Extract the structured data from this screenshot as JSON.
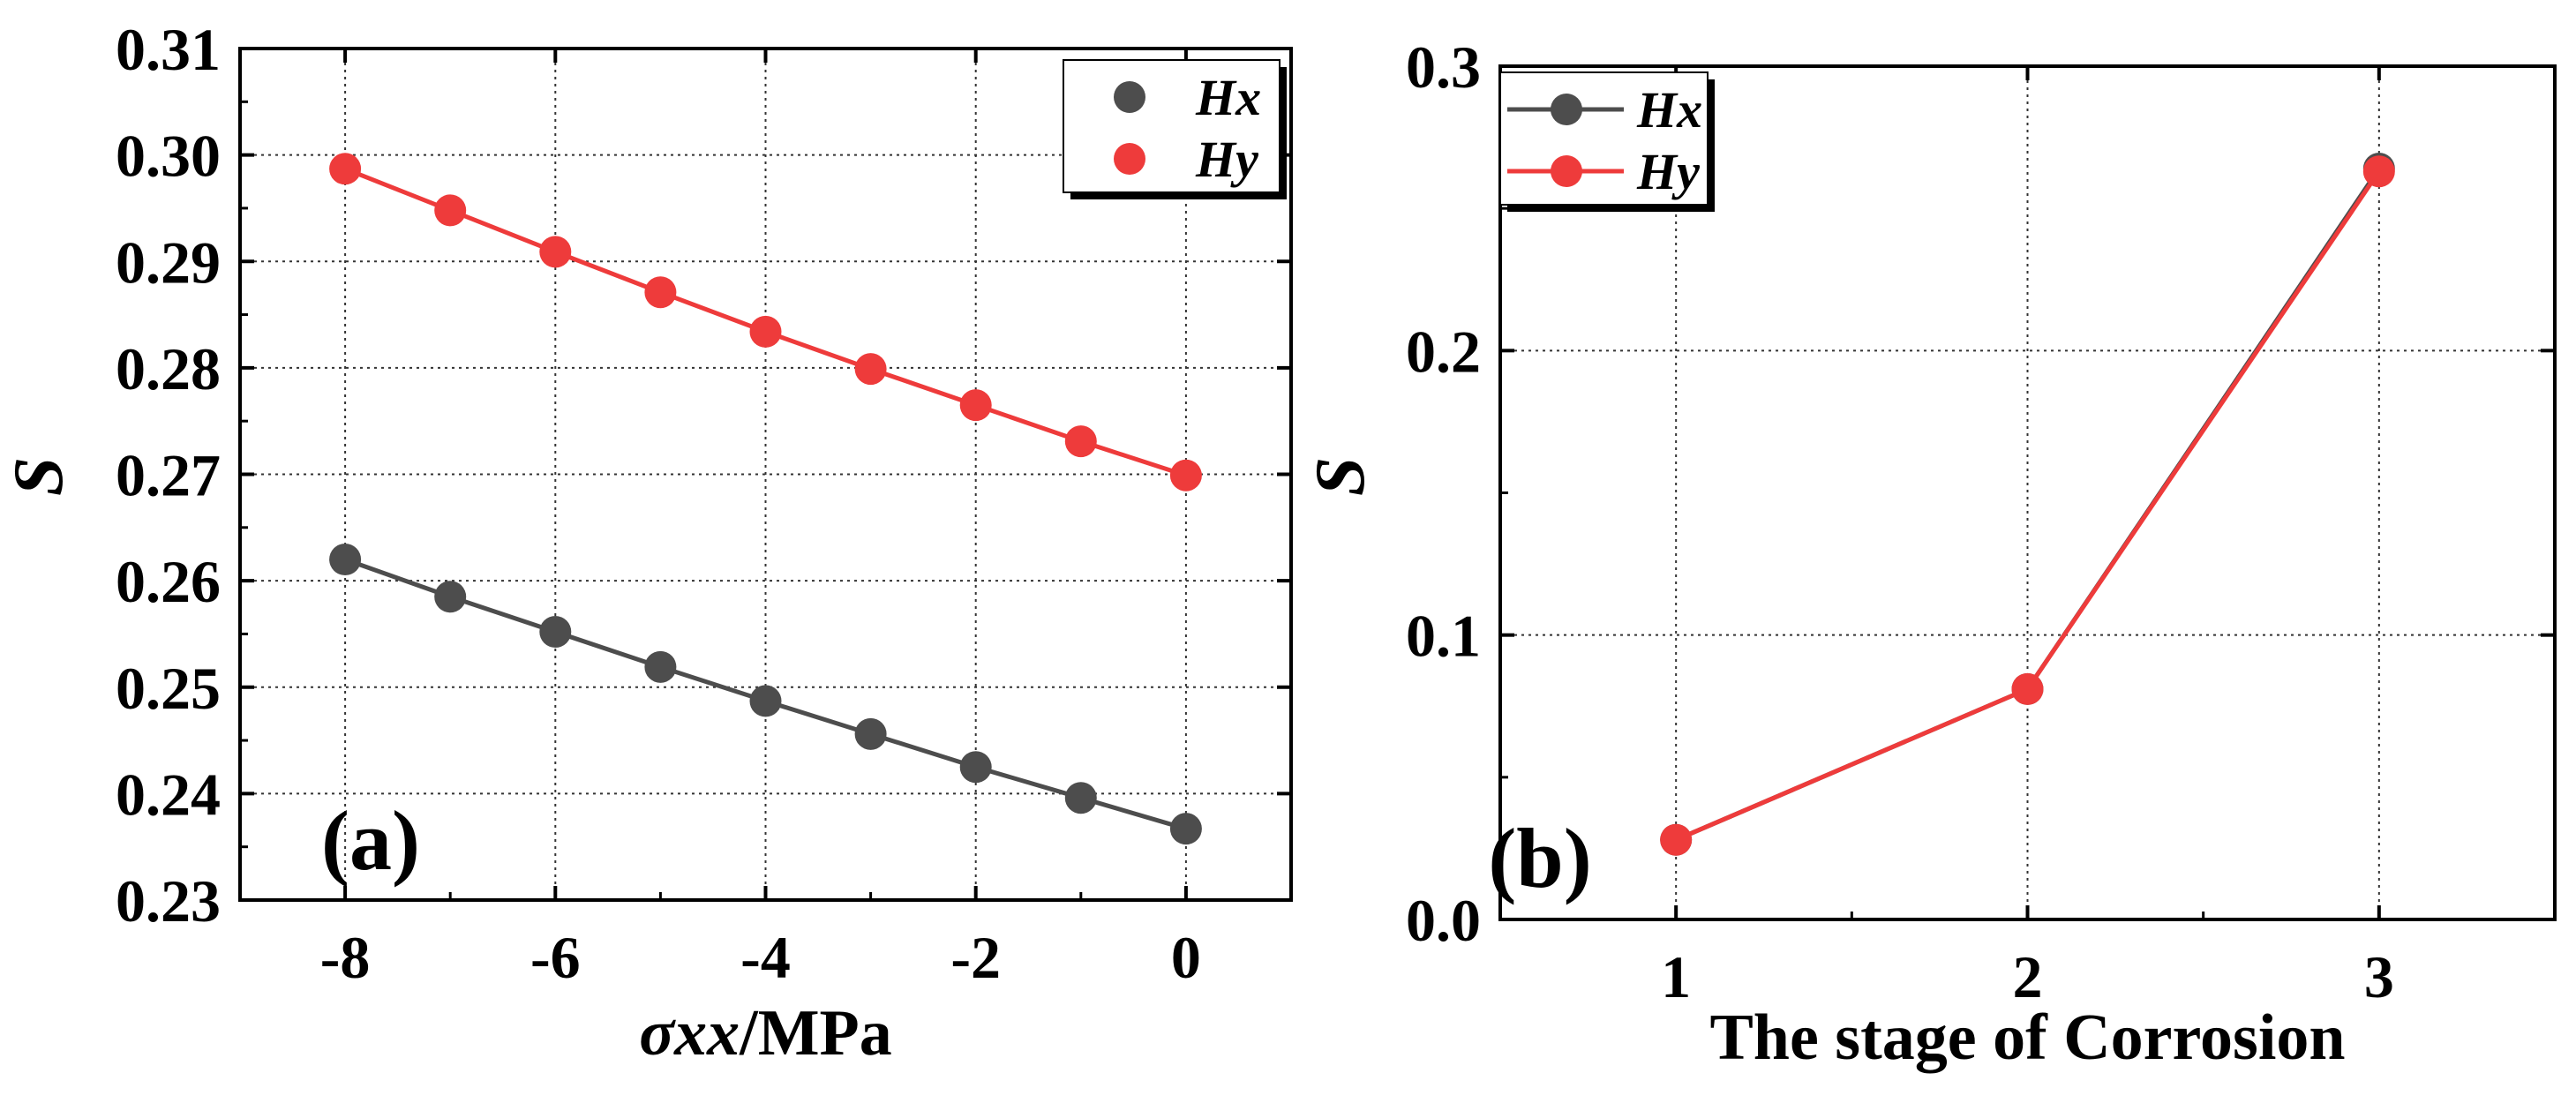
{
  "chart_data": [
    {
      "type": "line",
      "panel_label": "(a)",
      "xlabel_symbol": "σxx",
      "xlabel_unit": "/MPa",
      "ylabel": "S",
      "xlim": [
        -9,
        1
      ],
      "ylim": [
        0.23,
        0.31
      ],
      "xticks": [
        -8,
        -6,
        -4,
        -2,
        0
      ],
      "xtick_labels": [
        "-8",
        "-6",
        "-4",
        "-2",
        "0"
      ],
      "yticks": [
        0.23,
        0.24,
        0.25,
        0.26,
        0.27,
        0.28,
        0.29,
        0.3,
        0.31
      ],
      "ytick_labels": [
        "0.23",
        "0.24",
        "0.25",
        "0.26",
        "0.27",
        "0.28",
        "0.29",
        "0.30",
        "0.31"
      ],
      "grid": true,
      "legend_position": "top-right",
      "x": [
        -8,
        -7,
        -6,
        -5,
        -4,
        -3,
        -2,
        -1,
        0
      ],
      "series": [
        {
          "name": "Hx",
          "color": "#4d4d4d",
          "values": [
            0.262,
            0.2585,
            0.2552,
            0.2519,
            0.2487,
            0.2456,
            0.2425,
            0.2396,
            0.2367
          ]
        },
        {
          "name": "Hy",
          "color": "#ee3b3b",
          "values": [
            0.2987,
            0.2948,
            0.2909,
            0.2871,
            0.2834,
            0.2799,
            0.2765,
            0.2731,
            0.2699
          ]
        }
      ]
    },
    {
      "type": "line",
      "panel_label": "(b)",
      "xlabel": "The stage of Corrosion",
      "ylabel": "S",
      "xlim": [
        0.5,
        3.5
      ],
      "ylim": [
        0.0,
        0.3
      ],
      "xticks": [
        1,
        2,
        3
      ],
      "xtick_labels": [
        "1",
        "2",
        "3"
      ],
      "yticks": [
        0.0,
        0.1,
        0.2,
        0.3
      ],
      "ytick_labels": [
        "0.0",
        "0.1",
        "0.2",
        "0.3"
      ],
      "grid": true,
      "legend_position": "top-left",
      "x": [
        1,
        2,
        3
      ],
      "series": [
        {
          "name": "Hx",
          "color": "#4d4d4d",
          "values": [
            0.028,
            0.081,
            0.264
          ]
        },
        {
          "name": "Hy",
          "color": "#ee3b3b",
          "values": [
            0.028,
            0.081,
            0.263
          ]
        }
      ]
    }
  ]
}
